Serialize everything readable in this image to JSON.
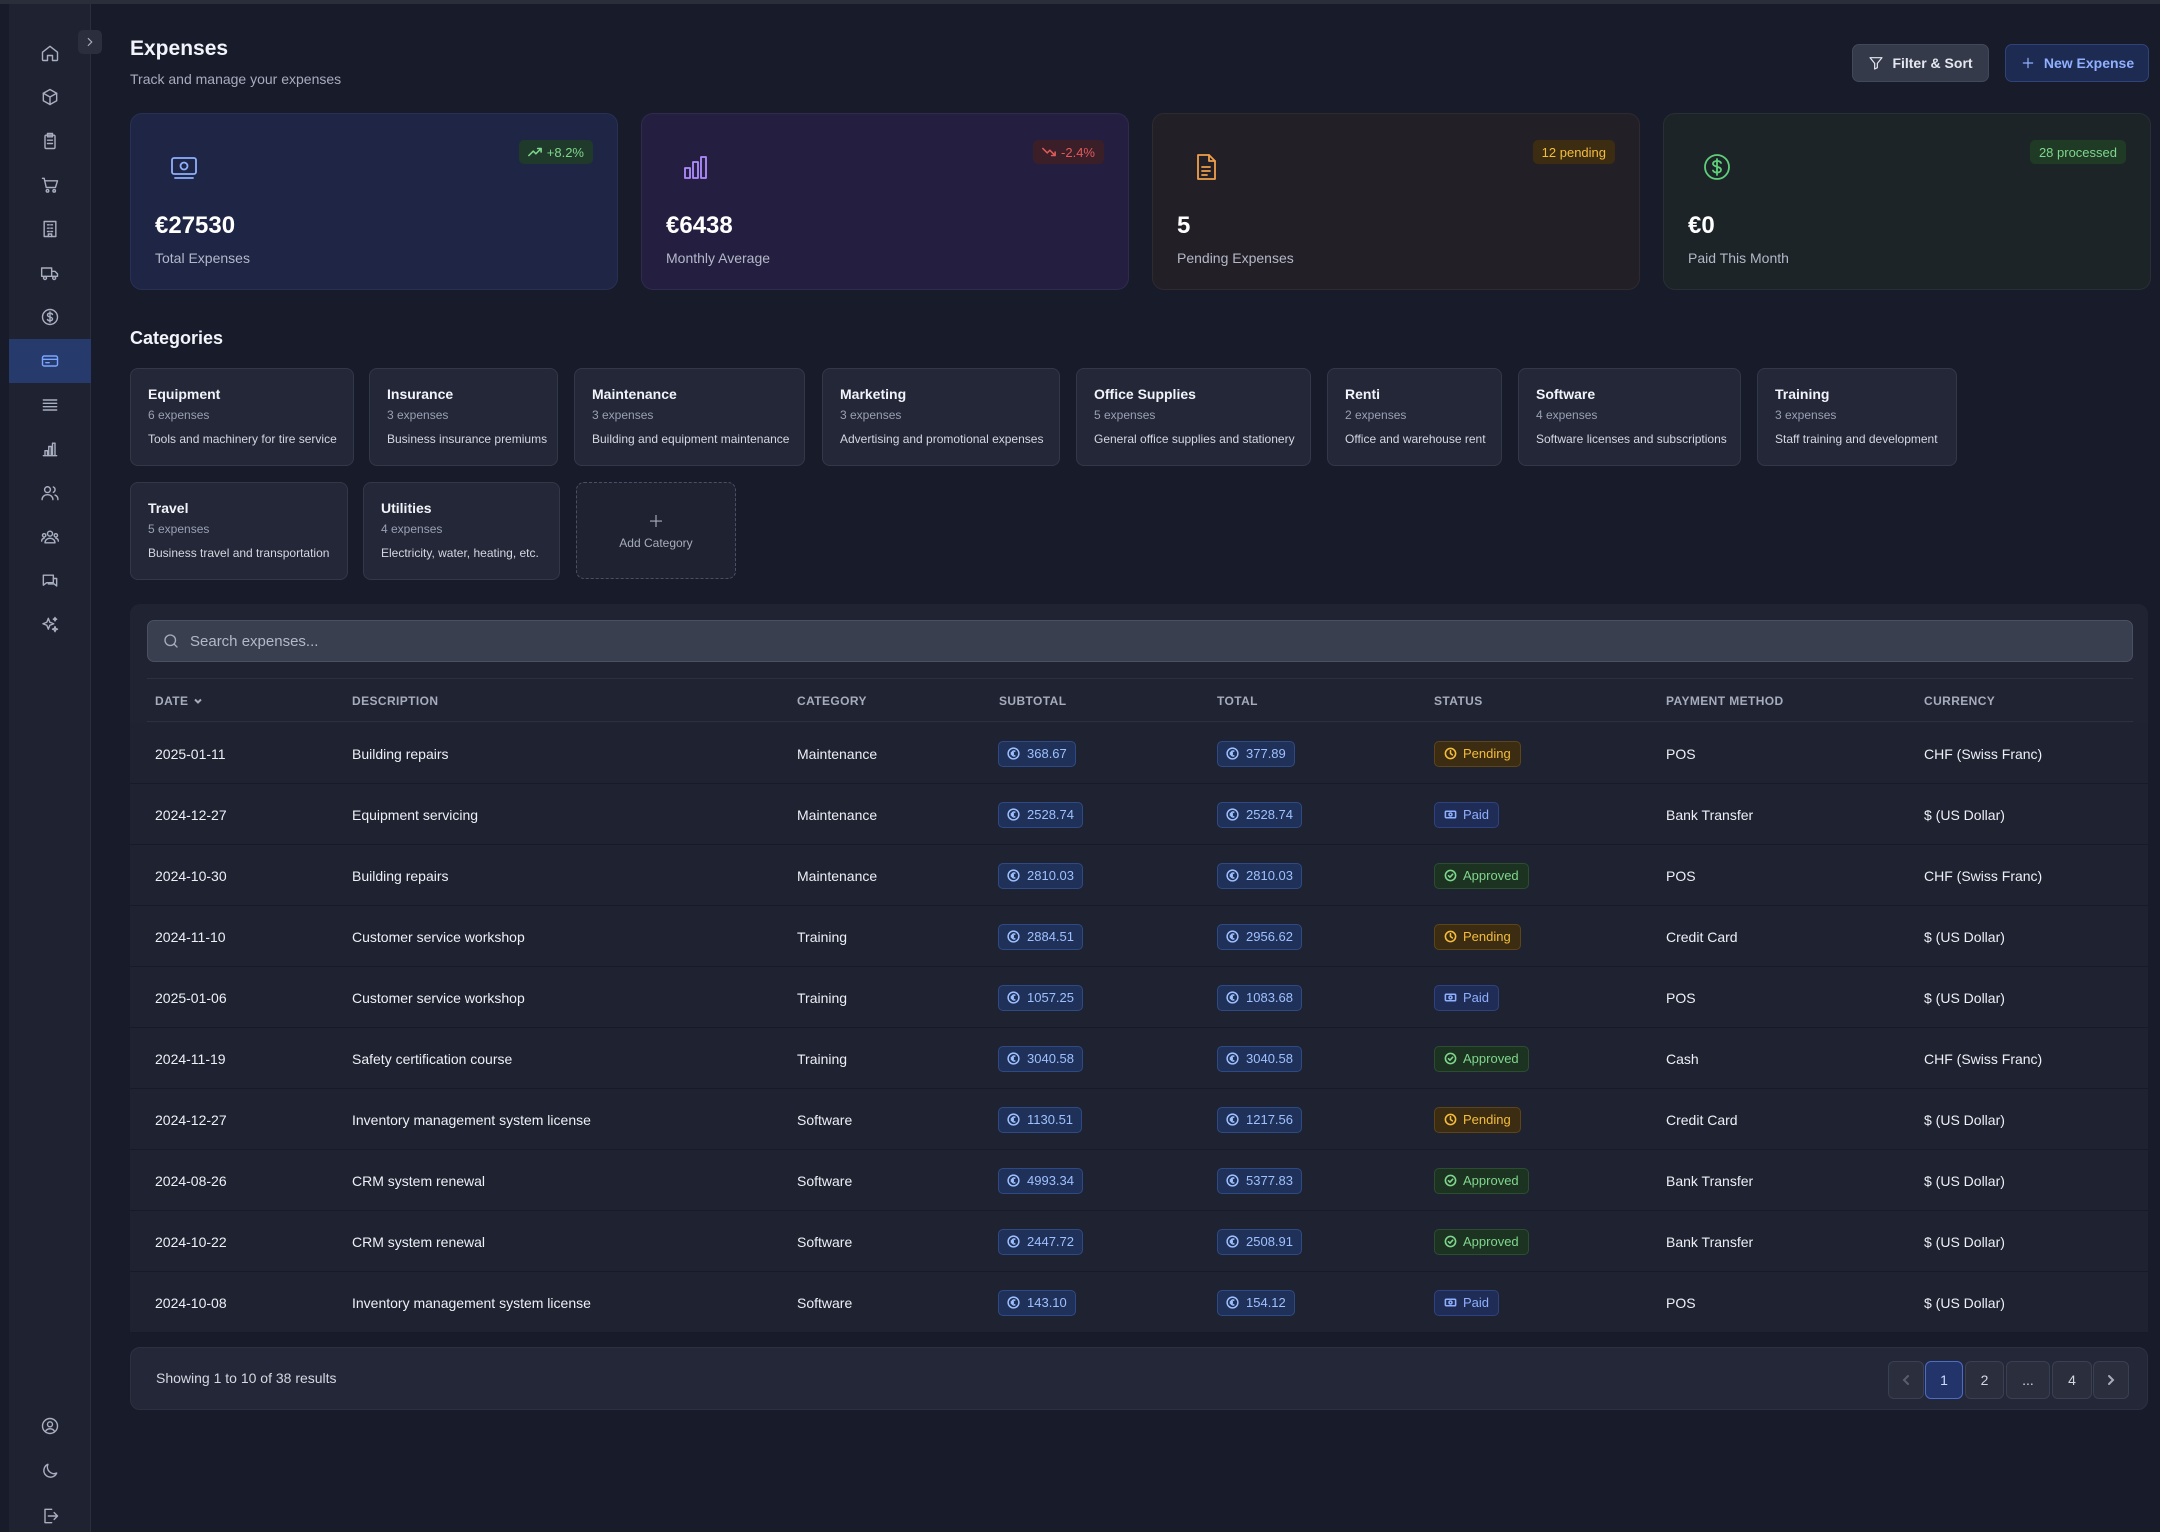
{
  "header": {
    "title": "Expenses",
    "subtitle": "Track and manage your expenses",
    "filter_label": "Filter & Sort",
    "new_label": "New Expense"
  },
  "sidebar": {
    "items": [
      {
        "icon": "home-icon"
      },
      {
        "icon": "box-icon"
      },
      {
        "icon": "clipboard-icon"
      },
      {
        "icon": "cart-icon"
      },
      {
        "icon": "building-icon"
      },
      {
        "icon": "truck-icon"
      },
      {
        "icon": "dollar-circle-icon"
      },
      {
        "icon": "credit-card-icon",
        "active": true
      },
      {
        "icon": "list-icon"
      },
      {
        "icon": "bar-chart-icon"
      },
      {
        "icon": "users-icon"
      },
      {
        "icon": "user-group-icon"
      },
      {
        "icon": "chat-icon"
      },
      {
        "icon": "sparkles-icon"
      }
    ],
    "bottom": [
      {
        "icon": "user-circle-icon"
      },
      {
        "icon": "moon-icon"
      },
      {
        "icon": "logout-icon"
      }
    ]
  },
  "stats": [
    {
      "value": "€27530",
      "label": "Total Expenses",
      "badge": "+8.2%",
      "icon": "money-icon"
    },
    {
      "value": "€6438",
      "label": "Monthly Average",
      "badge": "-2.4%",
      "icon": "bar-chart-icon"
    },
    {
      "value": "5",
      "label": "Pending Expenses",
      "badge": "12 pending",
      "icon": "document-icon"
    },
    {
      "value": "€0",
      "label": "Paid This Month",
      "badge": "28 processed",
      "icon": "dollar-circle-icon"
    }
  ],
  "categories_title": "Categories",
  "categories": [
    {
      "name": "Equipment",
      "count": "6 expenses",
      "desc": "Tools and machinery for tire service"
    },
    {
      "name": "Insurance",
      "count": "3 expenses",
      "desc": "Business insurance premiums"
    },
    {
      "name": "Maintenance",
      "count": "3 expenses",
      "desc": "Building and equipment maintenance"
    },
    {
      "name": "Marketing",
      "count": "3 expenses",
      "desc": "Advertising and promotional expenses"
    },
    {
      "name": "Office Supplies",
      "count": "5 expenses",
      "desc": "General office supplies and stationery"
    },
    {
      "name": "Renti",
      "count": "2 expenses",
      "desc": "Office and warehouse rent"
    },
    {
      "name": "Software",
      "count": "4 expenses",
      "desc": "Software licenses and subscriptions"
    },
    {
      "name": "Training",
      "count": "3 expenses",
      "desc": "Staff training and development"
    },
    {
      "name": "Travel",
      "count": "5 expenses",
      "desc": "Business travel and transportation"
    },
    {
      "name": "Utilities",
      "count": "4 expenses",
      "desc": "Electricity, water, heating, etc."
    }
  ],
  "add_category_label": "Add Category",
  "search": {
    "placeholder": "Search expenses..."
  },
  "table": {
    "columns": [
      "DATE",
      "DESCRIPTION",
      "CATEGORY",
      "SUBTOTAL",
      "TOTAL",
      "STATUS",
      "PAYMENT METHOD",
      "CURRENCY"
    ],
    "rows": [
      {
        "date": "2025-01-11",
        "desc": "Building repairs",
        "category": "Maintenance",
        "subtotal": "368.67",
        "total": "377.89",
        "status": "Pending",
        "method": "POS",
        "currency": "CHF (Swiss Franc)"
      },
      {
        "date": "2024-12-27",
        "desc": "Equipment servicing",
        "category": "Maintenance",
        "subtotal": "2528.74",
        "total": "2528.74",
        "status": "Paid",
        "method": "Bank Transfer",
        "currency": "$ (US Dollar)"
      },
      {
        "date": "2024-10-30",
        "desc": "Building repairs",
        "category": "Maintenance",
        "subtotal": "2810.03",
        "total": "2810.03",
        "status": "Approved",
        "method": "POS",
        "currency": "CHF (Swiss Franc)"
      },
      {
        "date": "2024-11-10",
        "desc": "Customer service workshop",
        "category": "Training",
        "subtotal": "2884.51",
        "total": "2956.62",
        "status": "Pending",
        "method": "Credit Card",
        "currency": "$ (US Dollar)"
      },
      {
        "date": "2025-01-06",
        "desc": "Customer service workshop",
        "category": "Training",
        "subtotal": "1057.25",
        "total": "1083.68",
        "status": "Paid",
        "method": "POS",
        "currency": "$ (US Dollar)"
      },
      {
        "date": "2024-11-19",
        "desc": "Safety certification course",
        "category": "Training",
        "subtotal": "3040.58",
        "total": "3040.58",
        "status": "Approved",
        "method": "Cash",
        "currency": "CHF (Swiss Franc)"
      },
      {
        "date": "2024-12-27",
        "desc": "Inventory management system license",
        "category": "Software",
        "subtotal": "1130.51",
        "total": "1217.56",
        "status": "Pending",
        "method": "Credit Card",
        "currency": "$ (US Dollar)"
      },
      {
        "date": "2024-08-26",
        "desc": "CRM system renewal",
        "category": "Software",
        "subtotal": "4993.34",
        "total": "5377.83",
        "status": "Approved",
        "method": "Bank Transfer",
        "currency": "$ (US Dollar)"
      },
      {
        "date": "2024-10-22",
        "desc": "CRM system renewal",
        "category": "Software",
        "subtotal": "2447.72",
        "total": "2508.91",
        "status": "Approved",
        "method": "Bank Transfer",
        "currency": "$ (US Dollar)"
      },
      {
        "date": "2024-10-08",
        "desc": "Inventory management system license",
        "category": "Software",
        "subtotal": "143.10",
        "total": "154.12",
        "status": "Paid",
        "method": "POS",
        "currency": "$ (US Dollar)"
      }
    ]
  },
  "pagination": {
    "summary": "Showing 1 to 10 of 38 results",
    "pages": [
      "1",
      "2",
      "...",
      "4"
    ],
    "current": "1"
  },
  "colors": {
    "background": "#181b2a",
    "accent": "#8fb0ff",
    "pending": "#f5bd3c",
    "approved": "#7fd68d",
    "negative": "#e05a5a"
  }
}
